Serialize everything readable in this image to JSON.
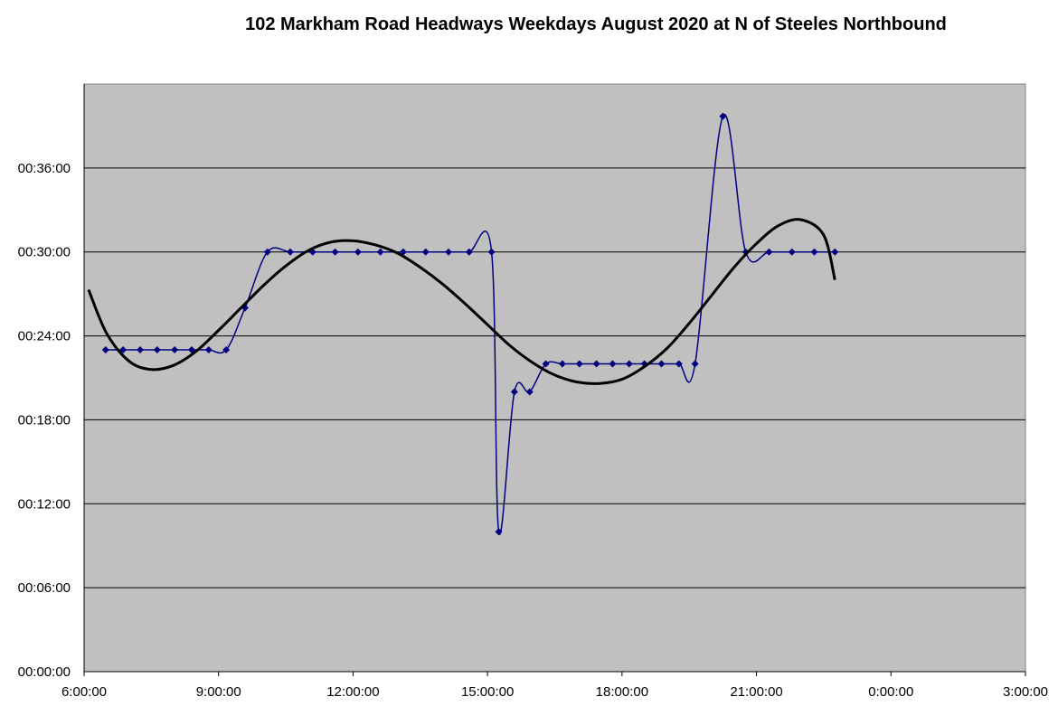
{
  "chart_data": {
    "type": "line",
    "title": "102 Markham Road Headways Weekdays August 2020 at N of Steeles Northbound",
    "xlim": [
      6,
      27
    ],
    "ylim": [
      0,
      42
    ],
    "xticks": [
      {
        "value": 6,
        "label": "6:00:00"
      },
      {
        "value": 9,
        "label": "9:00:00"
      },
      {
        "value": 12,
        "label": "12:00:00"
      },
      {
        "value": 15,
        "label": "15:00:00"
      },
      {
        "value": 18,
        "label": "18:00:00"
      },
      {
        "value": 21,
        "label": "21:00:00"
      },
      {
        "value": 24,
        "label": "0:00:00"
      },
      {
        "value": 27,
        "label": "3:00:00"
      }
    ],
    "yticks": [
      {
        "value": 0,
        "label": "00:00:00"
      },
      {
        "value": 6,
        "label": "00:06:00"
      },
      {
        "value": 12,
        "label": "00:12:00"
      },
      {
        "value": 18,
        "label": "00:18:00"
      },
      {
        "value": 24,
        "label": "00:24:00"
      },
      {
        "value": 30,
        "label": "00:30:00"
      },
      {
        "value": 36,
        "label": "00:36:00"
      }
    ],
    "grid": true,
    "series": [
      {
        "color": "#000080",
        "smooth": true,
        "markers": true,
        "x": [
          6.48,
          6.87,
          7.25,
          7.63,
          8.02,
          8.4,
          8.78,
          9.17,
          9.59,
          10.09,
          10.6,
          11.1,
          11.6,
          12.11,
          12.61,
          13.12,
          13.62,
          14.13,
          14.59,
          15.09,
          15.25,
          15.6,
          15.94,
          16.3,
          16.67,
          17.05,
          17.43,
          17.79,
          18.16,
          18.5,
          18.88,
          19.27,
          19.63,
          20.25,
          20.76,
          21.28,
          21.79,
          22.29,
          22.75
        ],
        "values": [
          23,
          23,
          23,
          23,
          23,
          23,
          23,
          23,
          26,
          30,
          30,
          30,
          30,
          30,
          30,
          30,
          30,
          30,
          30,
          30,
          10,
          20,
          20,
          22,
          22,
          22,
          22,
          22,
          22,
          22,
          22,
          22,
          22,
          39.7,
          30,
          30,
          30,
          30,
          30
        ]
      },
      {
        "color": "#000000",
        "smooth": true,
        "markers": false,
        "x": [
          6.1,
          6.5,
          7,
          7.5,
          8,
          8.5,
          9,
          9.5,
          10,
          10.5,
          11,
          11.5,
          12,
          12.5,
          13,
          13.5,
          14,
          14.5,
          15,
          15.5,
          16,
          16.5,
          17,
          17.5,
          18,
          18.5,
          19,
          19.5,
          20,
          20.5,
          21,
          21.5,
          22,
          22.5,
          22.75
        ],
        "values": [
          27.3,
          24.2,
          22.2,
          21.6,
          21.9,
          22.9,
          24.4,
          26.0,
          27.6,
          29.0,
          30.1,
          30.7,
          30.8,
          30.5,
          29.9,
          28.9,
          27.7,
          26.3,
          24.8,
          23.3,
          22.1,
          21.2,
          20.7,
          20.6,
          20.9,
          21.8,
          23.1,
          24.9,
          26.9,
          28.9,
          30.6,
          31.9,
          32.3,
          31.2,
          28.0
        ]
      }
    ]
  }
}
